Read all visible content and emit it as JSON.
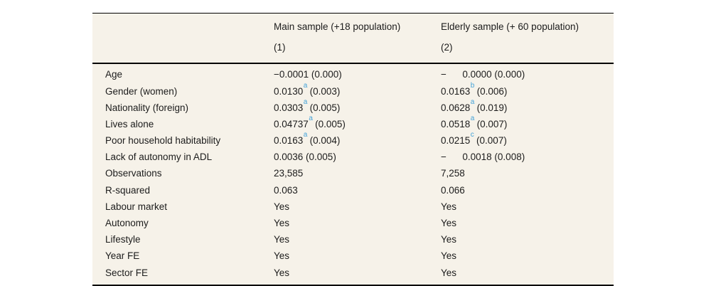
{
  "table": {
    "columns": [
      {
        "title": "Main sample (+18 population)",
        "number": "(1)"
      },
      {
        "title": "Elderly sample (+ 60 population)",
        "number": "(2)"
      }
    ],
    "rows": [
      {
        "label": "Age",
        "cells": [
          {
            "pre": "−0.0001 (0.000)"
          },
          {
            "pre": "−      0.0000 (0.000)"
          }
        ]
      },
      {
        "label": "Gender (women)",
        "cells": [
          {
            "pre": "0.0130",
            "sup": "a",
            "post": " (0.003)"
          },
          {
            "pre": "0.0163",
            "sup": "b",
            "post": " (0.006)"
          }
        ]
      },
      {
        "label": "Nationality (foreign)",
        "cells": [
          {
            "pre": "0.0303",
            "sup": "a",
            "post": " (0.005)"
          },
          {
            "pre": "0.0628",
            "sup": "a",
            "post": " (0.019)"
          }
        ]
      },
      {
        "label": "Lives alone",
        "cells": [
          {
            "pre": "0.04737",
            "sup": "a",
            "post": " (0.005)"
          },
          {
            "pre": "0.0518",
            "sup": "a",
            "post": " (0.007)"
          }
        ]
      },
      {
        "label": "Poor household habitability",
        "cells": [
          {
            "pre": "0.0163",
            "sup": "a",
            "post": " (0.004)"
          },
          {
            "pre": "0.0215",
            "sup": "c",
            "post": " (0.007)"
          }
        ]
      },
      {
        "label": "Lack of autonomy in ADL",
        "cells": [
          {
            "pre": "0.0036 (0.005)"
          },
          {
            "pre": "−      0.0018 (0.008)"
          }
        ]
      },
      {
        "label": "Observations",
        "cells": [
          {
            "pre": "23,585"
          },
          {
            "pre": "7,258"
          }
        ]
      },
      {
        "label": "R-squared",
        "cells": [
          {
            "pre": "0.063"
          },
          {
            "pre": "0.066"
          }
        ]
      },
      {
        "label": "Labour market",
        "cells": [
          {
            "pre": "Yes"
          },
          {
            "pre": "Yes"
          }
        ]
      },
      {
        "label": "Autonomy",
        "cells": [
          {
            "pre": "Yes"
          },
          {
            "pre": "Yes"
          }
        ]
      },
      {
        "label": "Lifestyle",
        "cells": [
          {
            "pre": "Yes"
          },
          {
            "pre": "Yes"
          }
        ]
      },
      {
        "label": "Year FE",
        "cells": [
          {
            "pre": "Yes"
          },
          {
            "pre": "Yes"
          }
        ]
      },
      {
        "label": "Sector FE",
        "cells": [
          {
            "pre": "Yes"
          },
          {
            "pre": "Yes"
          }
        ]
      }
    ],
    "colors": {
      "background": "#f6f2e9",
      "rule": "#000000",
      "text": "#1c1c1c",
      "significance_superscript": "#44a3d9"
    }
  }
}
